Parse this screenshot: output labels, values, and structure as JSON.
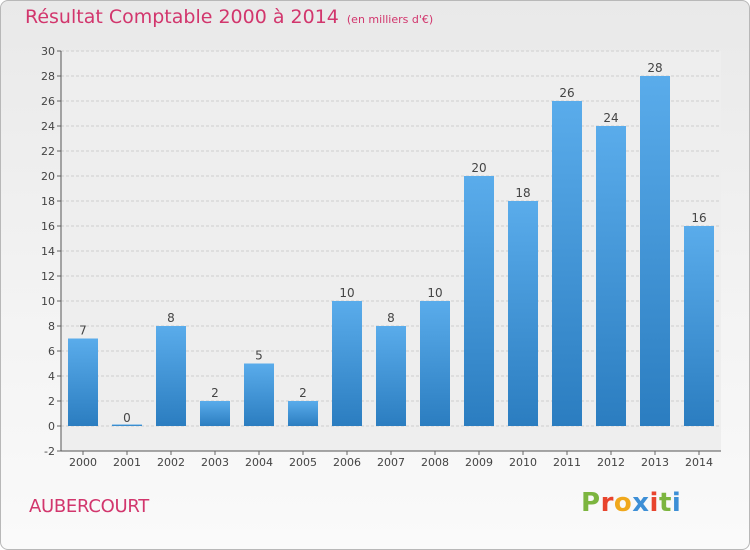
{
  "header": {
    "title": "Résultat Comptable 2000 à 2014",
    "unit": "(en milliers d'€)"
  },
  "footer": {
    "place": "AUBERCOURT",
    "logo_letters": [
      "P",
      "r",
      "o",
      "x",
      "i",
      "t",
      "i"
    ],
    "logo_colors": [
      "#7cb53f",
      "#e8442d",
      "#f0a81c",
      "#3d8fd6",
      "#e8442d",
      "#7cb53f",
      "#3d8fd6"
    ]
  },
  "colors": {
    "bar_top": "#5aaceb",
    "bar_bottom": "#2b7dc0",
    "accent": "#d2366d"
  },
  "chart_data": {
    "type": "bar",
    "title": "Résultat Comptable 2000 à 2014",
    "xlabel": "",
    "ylabel": "",
    "categories": [
      "2000",
      "2001",
      "2002",
      "2003",
      "2004",
      "2005",
      "2006",
      "2007",
      "2008",
      "2009",
      "2010",
      "2011",
      "2012",
      "2013",
      "2014"
    ],
    "values": [
      7,
      0,
      8,
      2,
      5,
      2,
      10,
      8,
      10,
      20,
      18,
      26,
      24,
      28,
      16
    ],
    "data_labels": [
      "7",
      "0",
      "8",
      "2",
      "5",
      "2",
      "10",
      "8",
      "10",
      "20",
      "18",
      "26",
      "24",
      "28",
      "16"
    ],
    "ylim": [
      -2,
      30
    ],
    "yticks": [
      -2,
      0,
      2,
      4,
      6,
      8,
      10,
      12,
      14,
      16,
      18,
      20,
      22,
      24,
      26,
      28,
      30
    ],
    "grid": true,
    "legend": "none"
  }
}
